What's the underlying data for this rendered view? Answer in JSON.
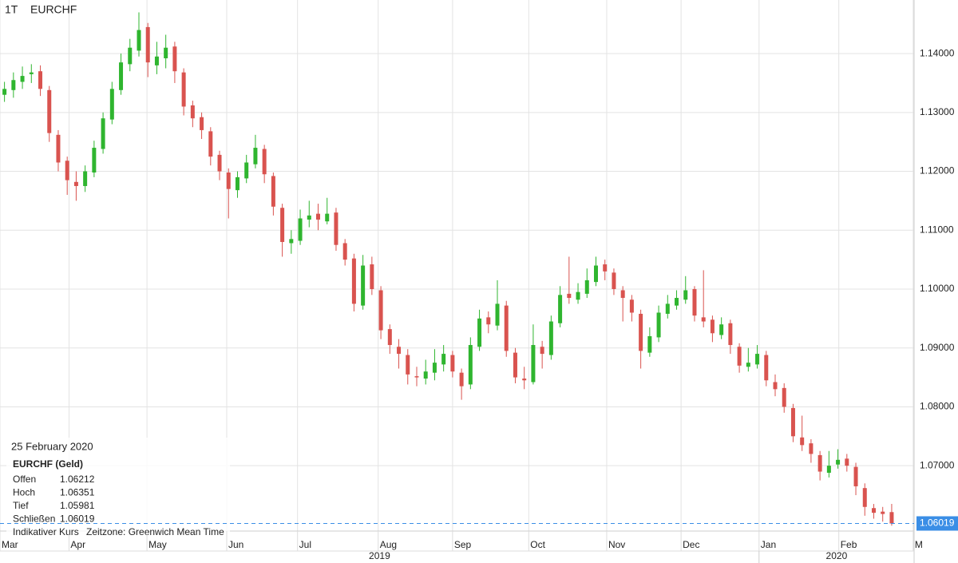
{
  "chart_data": {
    "type": "candlestick",
    "interval": "1T",
    "symbol": "EURCHF",
    "up_color": "#2fb52f",
    "down_color": "#d9534f",
    "grid": true,
    "xlim": [
      0,
      102
    ],
    "ylim": [
      1.0589,
      1.1491
    ],
    "xticks": [
      {
        "value": 0,
        "label": "Mar"
      },
      {
        "value": 7.7,
        "label": "Apr"
      },
      {
        "value": 16.4,
        "label": "May"
      },
      {
        "value": 25.3,
        "label": "Jun"
      },
      {
        "value": 33.2,
        "label": "Jul"
      },
      {
        "value": 42.2,
        "label": "Aug"
      },
      {
        "value": 50.5,
        "label": "Sep"
      },
      {
        "value": 59.0,
        "label": "Oct"
      },
      {
        "value": 67.7,
        "label": "Nov"
      },
      {
        "value": 76.0,
        "label": "Dec"
      },
      {
        "value": 84.7,
        "label": "Jan"
      },
      {
        "value": 93.6,
        "label": "Feb"
      },
      {
        "value": 101.9,
        "label": "M"
      }
    ],
    "years": [
      "2019",
      "2020"
    ],
    "yticks": [
      {
        "value": 1.07,
        "label": "1.07000"
      },
      {
        "value": 1.08,
        "label": "1.08000"
      },
      {
        "value": 1.09,
        "label": "1.09000"
      },
      {
        "value": 1.1,
        "label": "1.10000"
      },
      {
        "value": 1.11,
        "label": "1.11000"
      },
      {
        "value": 1.12,
        "label": "1.12000"
      },
      {
        "value": 1.13,
        "label": "1.13000"
      },
      {
        "value": 1.14,
        "label": "1.14000"
      }
    ],
    "series": [
      {
        "name": "EURCHF (Geld)",
        "open": [
          1.133,
          1.1338,
          1.1352,
          1.1365,
          1.137,
          1.1338,
          1.1262,
          1.1218,
          1.1182,
          1.1175,
          1.1198,
          1.1238,
          1.1288,
          1.1338,
          1.1382,
          1.1405,
          1.1445,
          1.138,
          1.1392,
          1.1412,
          1.1368,
          1.1312,
          1.1292,
          1.1268,
          1.1228,
          1.1198,
          1.1168,
          1.1188,
          1.1212,
          1.1238,
          1.1192,
          1.1138,
          1.1078,
          1.1082,
          1.1118,
          1.1128,
          1.1115,
          1.113,
          1.1078,
          1.1052,
          1.0972,
          1.1042,
          1.0998,
          1.0932,
          1.0902,
          1.0888,
          1.0852,
          1.0848,
          1.0858,
          1.0872,
          1.0888,
          1.0858,
          1.0838,
          1.0902,
          1.0952,
          1.0938,
          1.0972,
          1.0892,
          1.0848,
          1.0842,
          1.0902,
          1.0888,
          1.0942,
          1.0992,
          1.0982,
          1.0992,
          1.1012,
          1.1042,
          1.1028,
          1.0998,
          1.0982,
          1.0958,
          1.0892,
          1.0918,
          1.0958,
          1.0972,
          1.0982,
          1.1,
          1.0952,
          1.0948,
          1.0922,
          1.0942,
          1.0902,
          1.0868,
          1.0872,
          1.0888,
          1.0842,
          1.0832,
          1.0798,
          1.0748,
          1.0738,
          1.0718,
          1.0688,
          1.0702,
          1.0712,
          1.0698,
          1.0662,
          1.0628,
          1.0622,
          1.06212
        ],
        "high": [
          1.1352,
          1.1368,
          1.1378,
          1.1382,
          1.138,
          1.1345,
          1.127,
          1.1225,
          1.12,
          1.121,
          1.1252,
          1.13,
          1.1352,
          1.14,
          1.1425,
          1.147,
          1.1452,
          1.142,
          1.1432,
          1.142,
          1.1375,
          1.132,
          1.13,
          1.1275,
          1.1235,
          1.1205,
          1.12,
          1.1228,
          1.1262,
          1.1245,
          1.1198,
          1.1145,
          1.11,
          1.1135,
          1.115,
          1.1145,
          1.1155,
          1.1138,
          1.1085,
          1.106,
          1.1058,
          1.1055,
          1.1005,
          1.094,
          1.0915,
          1.0898,
          1.0868,
          1.088,
          1.0898,
          1.0905,
          1.0895,
          1.0865,
          1.0918,
          1.0965,
          1.0962,
          1.1015,
          1.098,
          1.09,
          1.0868,
          1.094,
          1.0912,
          1.0955,
          1.1005,
          1.1055,
          1.101,
          1.1035,
          1.1055,
          1.105,
          1.1035,
          1.1005,
          1.099,
          1.0965,
          1.0935,
          1.0972,
          1.099,
          1.0998,
          1.1022,
          1.1005,
          1.1032,
          1.0955,
          1.0952,
          1.0948,
          1.0908,
          1.09,
          1.0905,
          1.0895,
          1.0855,
          1.084,
          1.0805,
          1.0785,
          1.0745,
          1.0725,
          1.0725,
          1.0728,
          1.072,
          1.0705,
          1.067,
          1.0635,
          1.063,
          1.06351
        ],
        "low": [
          1.1318,
          1.1325,
          1.134,
          1.135,
          1.1328,
          1.125,
          1.12,
          1.116,
          1.115,
          1.1165,
          1.119,
          1.123,
          1.128,
          1.133,
          1.137,
          1.1395,
          1.136,
          1.1365,
          1.1375,
          1.135,
          1.1295,
          1.1275,
          1.1255,
          1.121,
          1.1185,
          1.112,
          1.1155,
          1.118,
          1.1205,
          1.118,
          1.1125,
          1.1055,
          1.106,
          1.1075,
          1.1105,
          1.11,
          1.111,
          1.1065,
          1.104,
          1.0962,
          1.0965,
          1.099,
          1.0915,
          1.089,
          1.0865,
          1.0838,
          1.0835,
          1.0838,
          1.0845,
          1.086,
          1.085,
          1.0812,
          1.083,
          1.0895,
          1.0925,
          1.093,
          1.0885,
          1.084,
          1.083,
          1.0838,
          1.0865,
          1.088,
          1.0935,
          1.0975,
          1.0975,
          1.0985,
          1.1005,
          1.1015,
          1.099,
          1.0945,
          1.0945,
          1.0865,
          1.0885,
          1.091,
          1.095,
          1.0965,
          1.0975,
          1.0945,
          1.0935,
          1.091,
          1.0915,
          1.089,
          1.0858,
          1.086,
          1.0865,
          1.0835,
          1.0818,
          1.079,
          1.074,
          1.0725,
          1.0705,
          1.0675,
          1.068,
          1.0695,
          1.069,
          1.065,
          1.0615,
          1.061,
          1.0605,
          1.05981
        ],
        "close": [
          1.134,
          1.1355,
          1.1362,
          1.1368,
          1.134,
          1.1265,
          1.1215,
          1.1185,
          1.1175,
          1.12,
          1.124,
          1.129,
          1.134,
          1.1385,
          1.141,
          1.144,
          1.1385,
          1.1395,
          1.141,
          1.137,
          1.131,
          1.129,
          1.127,
          1.1225,
          1.12,
          1.117,
          1.119,
          1.1215,
          1.124,
          1.1195,
          1.114,
          1.108,
          1.1085,
          1.112,
          1.1125,
          1.1118,
          1.1128,
          1.1075,
          1.105,
          1.0975,
          1.104,
          1.1,
          1.093,
          1.0905,
          1.089,
          1.0855,
          1.085,
          1.086,
          1.0875,
          1.089,
          1.086,
          1.0835,
          1.0905,
          1.095,
          1.094,
          1.0975,
          1.0895,
          1.085,
          1.0845,
          1.0905,
          1.089,
          1.0945,
          1.099,
          1.0985,
          1.0995,
          1.1015,
          1.104,
          1.103,
          1.1,
          1.0985,
          1.096,
          1.0895,
          1.092,
          1.096,
          1.0975,
          1.0985,
          1.0998,
          1.0955,
          1.0945,
          1.0925,
          1.094,
          1.0905,
          1.087,
          1.0875,
          1.089,
          1.0845,
          1.083,
          1.08,
          1.075,
          1.0735,
          1.072,
          1.069,
          1.07,
          1.071,
          1.07,
          1.0665,
          1.063,
          1.062,
          1.0618,
          1.06019
        ]
      }
    ]
  },
  "info": {
    "date": "25 February 2020",
    "labels": [
      "Offen",
      "Hoch",
      "Tief",
      "Schließen"
    ],
    "note": "Indikativer Kurs",
    "timezone": "Zeitzone: Greenwich Mean Time"
  }
}
